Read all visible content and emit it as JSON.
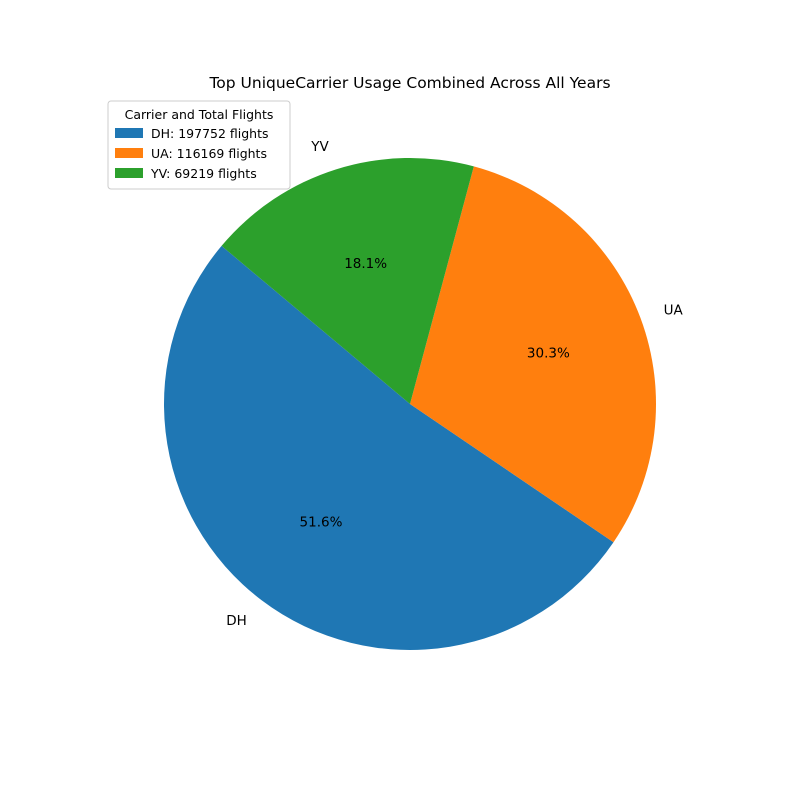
{
  "chart_data": {
    "type": "pie",
    "title": "Top UniqueCarrier Usage Combined Across All Years",
    "categories": [
      "DH",
      "UA",
      "YV"
    ],
    "values": [
      197752,
      116169,
      69219
    ],
    "percent_labels": [
      "51.6%",
      "30.3%",
      "18.1%"
    ],
    "colors": [
      "#1f77b4",
      "#ff7f0e",
      "#2ca02c"
    ],
    "start_angle_deg": 140,
    "direction": "counterclockwise",
    "legend": {
      "title": "Carrier and Total Flights",
      "placement": "upper-left",
      "entries": [
        "DH: 197752 flights",
        "UA: 116169 flights",
        "YV: 69219 flights"
      ]
    }
  }
}
